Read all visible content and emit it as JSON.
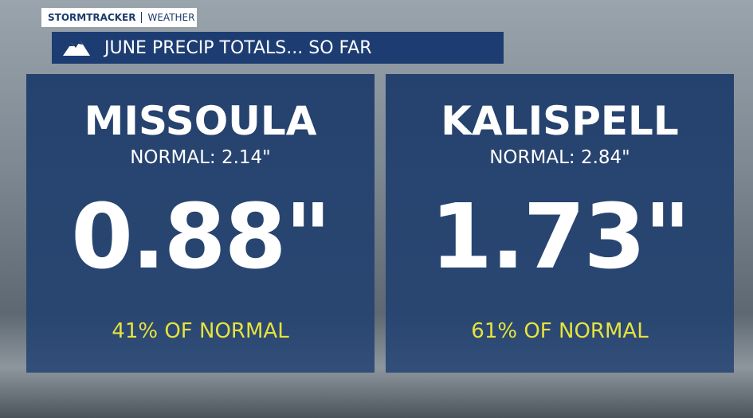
{
  "brand": {
    "name": "STORMTRACKER",
    "section": "WEATHER"
  },
  "title": "JUNE PRECIP TOTALS... SO FAR",
  "panels": [
    {
      "city": "MISSOULA",
      "normal": "NORMAL: 2.14\"",
      "total": "0.88\"",
      "percent": "41% OF NORMAL"
    },
    {
      "city": "KALISPELL",
      "normal": "NORMAL: 2.84\"",
      "total": "1.73\"",
      "percent": "61% OF NORMAL"
    }
  ]
}
